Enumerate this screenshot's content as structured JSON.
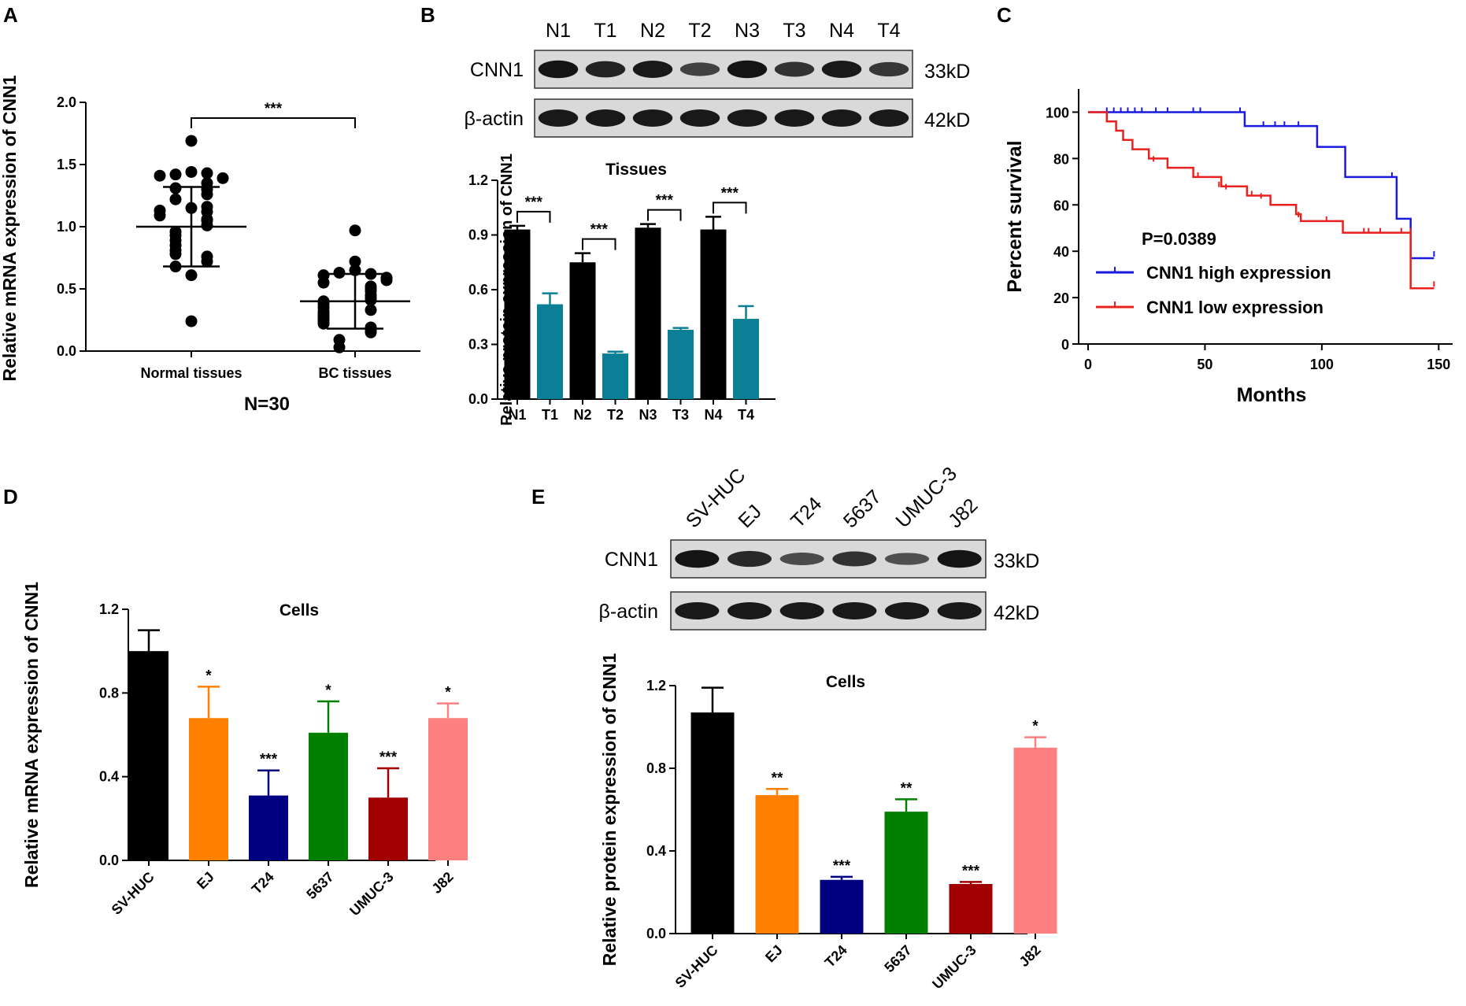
{
  "panels": {
    "a": {
      "label": "A",
      "subtitle": "N=30"
    },
    "b": {
      "label": "B",
      "blot": {
        "lanes": [
          "N1",
          "T1",
          "N2",
          "T2",
          "N3",
          "T3",
          "N4",
          "T4"
        ],
        "rows": [
          {
            "name": "CNN1",
            "size": "33kD",
            "intensity": [
              1.0,
              0.85,
              0.95,
              0.55,
              1.0,
              0.7,
              0.95,
              0.65
            ]
          },
          {
            "name": "β-actin",
            "size": "42kD",
            "intensity": [
              0.95,
              0.95,
              0.95,
              0.95,
              0.95,
              0.95,
              0.95,
              0.95
            ]
          }
        ]
      }
    },
    "c": {
      "label": "C",
      "pvalue": "P=0.0389"
    },
    "d": {
      "label": "D"
    },
    "e": {
      "label": "E",
      "blot": {
        "lanes": [
          "SV-HUC",
          "EJ",
          "T24",
          "5637",
          "UMUC-3",
          "J82"
        ],
        "rows": [
          {
            "name": "CNN1",
            "size": "33kD",
            "intensity": [
              1.0,
              0.8,
              0.45,
              0.7,
              0.4,
              1.0
            ]
          },
          {
            "name": "β-actin",
            "size": "42kD",
            "intensity": [
              0.95,
              0.95,
              0.95,
              0.95,
              0.95,
              0.95
            ]
          }
        ]
      }
    }
  },
  "chart_data": [
    {
      "id": "A",
      "type": "scatter",
      "title": "",
      "ylabel": "Relative mRNA expression of CNN1",
      "xlabel": "",
      "ylim": [
        0,
        2.0
      ],
      "yticks": [
        "0.0",
        "0.5",
        "1.0",
        "1.5",
        "2.0"
      ],
      "categories": [
        "Normal tissues",
        "BC tissues"
      ],
      "series": [
        {
          "name": "Normal tissues",
          "mean": 1.0,
          "sd": 0.32,
          "values": [
            1.69,
            1.44,
            1.42,
            1.43,
            1.41,
            1.39,
            1.35,
            1.31,
            1.3,
            1.26,
            1.22,
            1.15,
            1.16,
            1.12,
            1.13,
            1.09,
            1.06,
            1.05,
            1.01,
            0.96,
            0.93,
            0.89,
            0.85,
            0.81,
            0.78,
            0.76,
            0.72,
            0.68,
            0.61,
            0.24
          ]
        },
        {
          "name": "BC tissues",
          "mean": 0.4,
          "sd": 0.22,
          "values": [
            0.97,
            0.72,
            0.65,
            0.63,
            0.62,
            0.61,
            0.59,
            0.57,
            0.55,
            0.52,
            0.5,
            0.48,
            0.45,
            0.43,
            0.41,
            0.4,
            0.38,
            0.35,
            0.33,
            0.32,
            0.3,
            0.28,
            0.26,
            0.24,
            0.22,
            0.19,
            0.17,
            0.15,
            0.09,
            0.03
          ]
        }
      ],
      "significance": "***"
    },
    {
      "id": "B",
      "type": "bar",
      "title": "Tissues",
      "ylabel": "Relative protein expression of CNN1",
      "xlabel": "",
      "ylim": [
        0,
        1.2
      ],
      "yticks": [
        "0.0",
        "0.3",
        "0.6",
        "0.9",
        "1.2"
      ],
      "categories": [
        "N1",
        "T1",
        "N2",
        "T2",
        "N3",
        "T3",
        "N4",
        "T4"
      ],
      "values": [
        0.93,
        0.52,
        0.75,
        0.25,
        0.94,
        0.38,
        0.93,
        0.44
      ],
      "errors": [
        0.02,
        0.06,
        0.05,
        0.01,
        0.02,
        0.01,
        0.07,
        0.07
      ],
      "colors": [
        "#000000",
        "#0a7f96",
        "#000000",
        "#0a7f96",
        "#000000",
        "#0a7f96",
        "#000000",
        "#0a7f96"
      ],
      "significance": [
        {
          "pair": [
            0,
            1
          ],
          "label": "***"
        },
        {
          "pair": [
            2,
            3
          ],
          "label": "***"
        },
        {
          "pair": [
            4,
            5
          ],
          "label": "***"
        },
        {
          "pair": [
            6,
            7
          ],
          "label": "***"
        }
      ]
    },
    {
      "id": "C",
      "type": "line",
      "title": "",
      "ylabel": "Percent survival",
      "xlabel": "Months",
      "xlim": [
        0,
        160
      ],
      "ylim": [
        0,
        110
      ],
      "xticks": [
        "0",
        "50",
        "100",
        "150"
      ],
      "yticks": [
        "0",
        "20",
        "40",
        "60",
        "80",
        "100"
      ],
      "series": [
        {
          "name": "CNN1 high expression",
          "color": "#1a1adf",
          "steps": [
            [
              0,
              100
            ],
            [
              67,
              100
            ],
            [
              67,
              94
            ],
            [
              98,
              94
            ],
            [
              98,
              85
            ],
            [
              110,
              85
            ],
            [
              110,
              72
            ],
            [
              132,
              72
            ],
            [
              132,
              54
            ],
            [
              138,
              54
            ],
            [
              138,
              37
            ],
            [
              148,
              37
            ]
          ],
          "censors": [
            [
              8,
              100
            ],
            [
              11,
              100
            ],
            [
              14,
              100
            ],
            [
              17,
              100
            ],
            [
              20,
              100
            ],
            [
              23,
              100
            ],
            [
              29,
              100
            ],
            [
              34,
              100
            ],
            [
              45,
              100
            ],
            [
              48,
              100
            ],
            [
              65,
              100
            ],
            [
              75,
              94
            ],
            [
              80,
              94
            ],
            [
              84,
              94
            ],
            [
              90,
              94
            ],
            [
              130,
              72
            ],
            [
              148,
              38
            ]
          ]
        },
        {
          "name": "CNN1 low expression",
          "color": "#e8201e",
          "steps": [
            [
              0,
              100
            ],
            [
              8,
              100
            ],
            [
              8,
              96
            ],
            [
              12,
              96
            ],
            [
              12,
              92
            ],
            [
              15,
              92
            ],
            [
              15,
              88
            ],
            [
              19,
              88
            ],
            [
              19,
              84
            ],
            [
              26,
              84
            ],
            [
              26,
              80
            ],
            [
              34,
              80
            ],
            [
              34,
              76
            ],
            [
              45,
              76
            ],
            [
              45,
              72
            ],
            [
              57,
              72
            ],
            [
              57,
              68
            ],
            [
              68,
              68
            ],
            [
              68,
              64
            ],
            [
              78,
              64
            ],
            [
              78,
              60
            ],
            [
              89,
              60
            ],
            [
              89,
              56
            ],
            [
              91,
              56
            ],
            [
              91,
              53
            ],
            [
              109,
              53
            ],
            [
              109,
              48
            ],
            [
              138,
              48
            ],
            [
              138,
              24
            ],
            [
              148,
              24
            ]
          ],
          "censors": [
            [
              28,
              79
            ],
            [
              47,
              72
            ],
            [
              56,
              68
            ],
            [
              59,
              67
            ],
            [
              70,
              64
            ],
            [
              74,
              63
            ],
            [
              78,
              60
            ],
            [
              90,
              55
            ],
            [
              102,
              53
            ],
            [
              118,
              48
            ],
            [
              120,
              48
            ],
            [
              125,
              48
            ],
            [
              134,
              48
            ],
            [
              138,
              48
            ],
            [
              148,
              25
            ]
          ]
        }
      ],
      "annotation": "P=0.0389"
    },
    {
      "id": "D",
      "type": "bar",
      "title": "Cells",
      "ylabel": "Relative mRNA expression of  CNN1",
      "xlabel": "",
      "ylim": [
        0,
        1.2
      ],
      "yticks": [
        "0.0",
        "0.4",
        "0.8",
        "1.2"
      ],
      "categories": [
        "SV-HUC",
        "EJ",
        "T24",
        "5637",
        "UMUC-3",
        "J82"
      ],
      "values": [
        1.0,
        0.68,
        0.31,
        0.61,
        0.3,
        0.68
      ],
      "errors": [
        0.1,
        0.15,
        0.12,
        0.15,
        0.14,
        0.07
      ],
      "colors": [
        "#000000",
        "#ff8000",
        "#000080",
        "#008000",
        "#a00000",
        "#ff8080"
      ],
      "stars": [
        "",
        "*",
        "***",
        "*",
        "***",
        "*"
      ]
    },
    {
      "id": "E",
      "type": "bar",
      "title": "Cells",
      "ylabel": "Relative protein expression of CNN1",
      "xlabel": "",
      "ylim": [
        0,
        1.2
      ],
      "yticks": [
        "0.0",
        "0.4",
        "0.8",
        "1.2"
      ],
      "categories": [
        "SV-HUC",
        "EJ",
        "T24",
        "5637",
        "UMUC-3",
        "J82"
      ],
      "values": [
        1.07,
        0.67,
        0.26,
        0.59,
        0.24,
        0.9
      ],
      "errors": [
        0.12,
        0.03,
        0.015,
        0.06,
        0.01,
        0.05
      ],
      "colors": [
        "#000000",
        "#ff8000",
        "#000080",
        "#008000",
        "#a00000",
        "#ff8080"
      ],
      "stars": [
        "",
        "**",
        "***",
        "**",
        "***",
        "*"
      ]
    }
  ]
}
